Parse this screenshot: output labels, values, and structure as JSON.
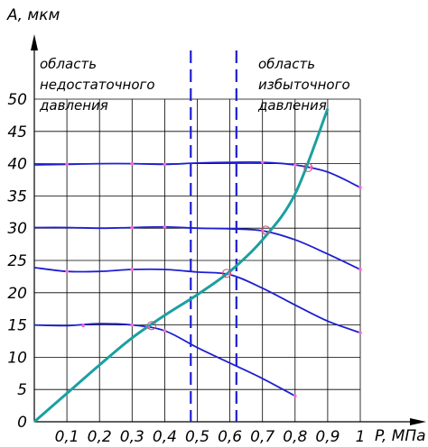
{
  "chart_data": {
    "type": "line",
    "ylabel": "А, мкм",
    "xlabel": "P, МПа",
    "xlim": [
      0,
      1
    ],
    "ylim": [
      0,
      50
    ],
    "x_ticks": [
      "0,1",
      "0,2",
      "0,3",
      "0,4",
      "0,5",
      "0,6",
      "0,7",
      "0,8",
      "0,9",
      "1"
    ],
    "y_ticks": [
      "0",
      "5",
      "10",
      "15",
      "20",
      "25",
      "30",
      "35",
      "40",
      "45",
      "50"
    ],
    "grid": true,
    "annotations": {
      "left_zone": [
        "область",
        "недостаточного",
        "давления"
      ],
      "right_zone": [
        "область",
        "избыточного",
        "давления"
      ]
    },
    "boundaries": [
      0.48,
      0.62
    ],
    "series": [
      {
        "color": "#1f1fd0",
        "points": [
          [
            0,
            39.8
          ],
          [
            0.1,
            39.9
          ],
          [
            0.2,
            40.0
          ],
          [
            0.3,
            40.0
          ],
          [
            0.4,
            39.9
          ],
          [
            0.5,
            40.1
          ],
          [
            0.6,
            40.2
          ],
          [
            0.7,
            40.2
          ],
          [
            0.8,
            39.8
          ],
          [
            0.9,
            38.7
          ],
          [
            1.0,
            36.3
          ]
        ]
      },
      {
        "color": "#1f1fd0",
        "points": [
          [
            0,
            30.1
          ],
          [
            0.1,
            30.1
          ],
          [
            0.2,
            30.0
          ],
          [
            0.3,
            30.1
          ],
          [
            0.4,
            30.2
          ],
          [
            0.5,
            30.0
          ],
          [
            0.6,
            29.9
          ],
          [
            0.7,
            29.6
          ],
          [
            0.8,
            28.2
          ],
          [
            0.9,
            26.0
          ],
          [
            1.0,
            23.6
          ]
        ]
      },
      {
        "color": "#1f1fd0",
        "points": [
          [
            0,
            23.9
          ],
          [
            0.1,
            23.3
          ],
          [
            0.2,
            23.3
          ],
          [
            0.3,
            23.6
          ],
          [
            0.4,
            23.6
          ],
          [
            0.5,
            23.2
          ],
          [
            0.6,
            22.8
          ],
          [
            0.7,
            20.7
          ],
          [
            0.8,
            18.1
          ],
          [
            0.9,
            15.6
          ],
          [
            1.0,
            13.8
          ]
        ]
      },
      {
        "color": "#1f1fd0",
        "points": [
          [
            0,
            15.0
          ],
          [
            0.1,
            14.9
          ],
          [
            0.2,
            15.2
          ],
          [
            0.3,
            15.0
          ],
          [
            0.4,
            14.1
          ],
          [
            0.5,
            11.5
          ],
          [
            0.6,
            9.1
          ],
          [
            0.7,
            6.7
          ],
          [
            0.8,
            4.0
          ]
        ]
      },
      {
        "color": "#1aa0a0",
        "points": [
          [
            0,
            0.0
          ],
          [
            0.1,
            4.4
          ],
          [
            0.2,
            8.8
          ],
          [
            0.3,
            13.0
          ],
          [
            0.4,
            16.5
          ],
          [
            0.5,
            19.7
          ],
          [
            0.6,
            23.3
          ],
          [
            0.7,
            28.2
          ],
          [
            0.8,
            35.3
          ],
          [
            0.9,
            48.5
          ]
        ]
      }
    ],
    "data_markers": [
      [
        0.15,
        14.9
      ],
      [
        0.3,
        15.0
      ],
      [
        0.35,
        14.6
      ],
      [
        0.4,
        14.1
      ],
      [
        0.1,
        23.3
      ],
      [
        0.3,
        23.6
      ],
      [
        0.6,
        22.9
      ],
      [
        0.3,
        30.1
      ],
      [
        0.4,
        30.2
      ],
      [
        0.7,
        29.6
      ],
      [
        0.1,
        39.9
      ],
      [
        0.3,
        40.0
      ],
      [
        0.4,
        39.9
      ],
      [
        0.7,
        40.2
      ],
      [
        0.8,
        39.8
      ],
      [
        0.85,
        39.4
      ],
      [
        1.0,
        36.3
      ],
      [
        1.0,
        23.6
      ],
      [
        1.0,
        13.8
      ],
      [
        0.8,
        4.0
      ]
    ],
    "intersections": [
      [
        0.36,
        14.9
      ],
      [
        0.59,
        23.0
      ],
      [
        0.71,
        29.7
      ],
      [
        0.84,
        39.4
      ]
    ],
    "colors": {
      "grid": "#000000",
      "curve": "#1f1fd0",
      "pressure_curve": "#1aa0a0",
      "boundary": "#1f1fd0",
      "marker": "#ff66cc"
    }
  }
}
